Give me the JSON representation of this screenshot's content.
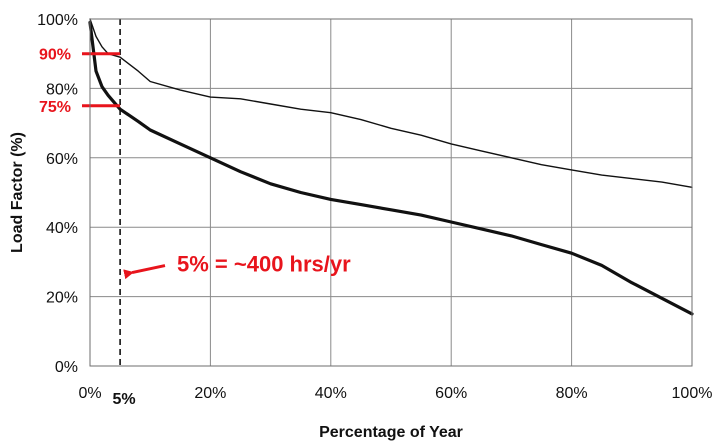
{
  "chart_data": {
    "type": "line",
    "xlabel": "Percentage of Year",
    "ylabel": "Load Factor (%)",
    "xlim": [
      0,
      100
    ],
    "ylim": [
      0,
      100
    ],
    "x_ticks": [
      "0%",
      "20%",
      "40%",
      "60%",
      "80%",
      "100%"
    ],
    "y_ticks": [
      "0%",
      "20%",
      "40%",
      "60%",
      "80%",
      "100%"
    ],
    "grid": true,
    "series": [
      {
        "style": "thin",
        "x": [
          0,
          1,
          2,
          3,
          4,
          5,
          8,
          10,
          15,
          20,
          25,
          30,
          35,
          40,
          45,
          50,
          55,
          60,
          65,
          70,
          75,
          80,
          85,
          90,
          95,
          100
        ],
        "y": [
          100,
          95,
          92,
          90,
          89.5,
          89,
          85,
          82,
          79.5,
          77.5,
          77,
          75.5,
          74,
          73,
          71,
          68.5,
          66.5,
          64,
          62,
          60,
          58,
          56.5,
          55,
          54,
          53,
          51.5
        ]
      },
      {
        "style": "thick",
        "x": [
          0,
          0.5,
          1,
          2,
          3,
          4,
          5,
          8,
          10,
          15,
          20,
          25,
          30,
          35,
          40,
          45,
          50,
          55,
          60,
          65,
          70,
          75,
          80,
          85,
          90,
          95,
          100
        ],
        "y": [
          99,
          92,
          85,
          80.5,
          78,
          76,
          74,
          70.5,
          68,
          64,
          60,
          56,
          52.5,
          50,
          48,
          46.5,
          45,
          43.5,
          41.5,
          39.5,
          37.5,
          35,
          32.5,
          29,
          24,
          19.5,
          15
        ]
      }
    ],
    "highlight_x": {
      "value": 5,
      "label": "5%"
    },
    "markers": [
      {
        "y": 90,
        "label": "90%"
      },
      {
        "y": 75,
        "label": "75%"
      }
    ],
    "annotation": {
      "text": "5% = ~400 hrs/yr",
      "points_to_x": 5,
      "y": 27.5
    },
    "colors": {
      "accent": "#e8141c",
      "line": "#111111",
      "grid": "#8a8a8a"
    }
  }
}
